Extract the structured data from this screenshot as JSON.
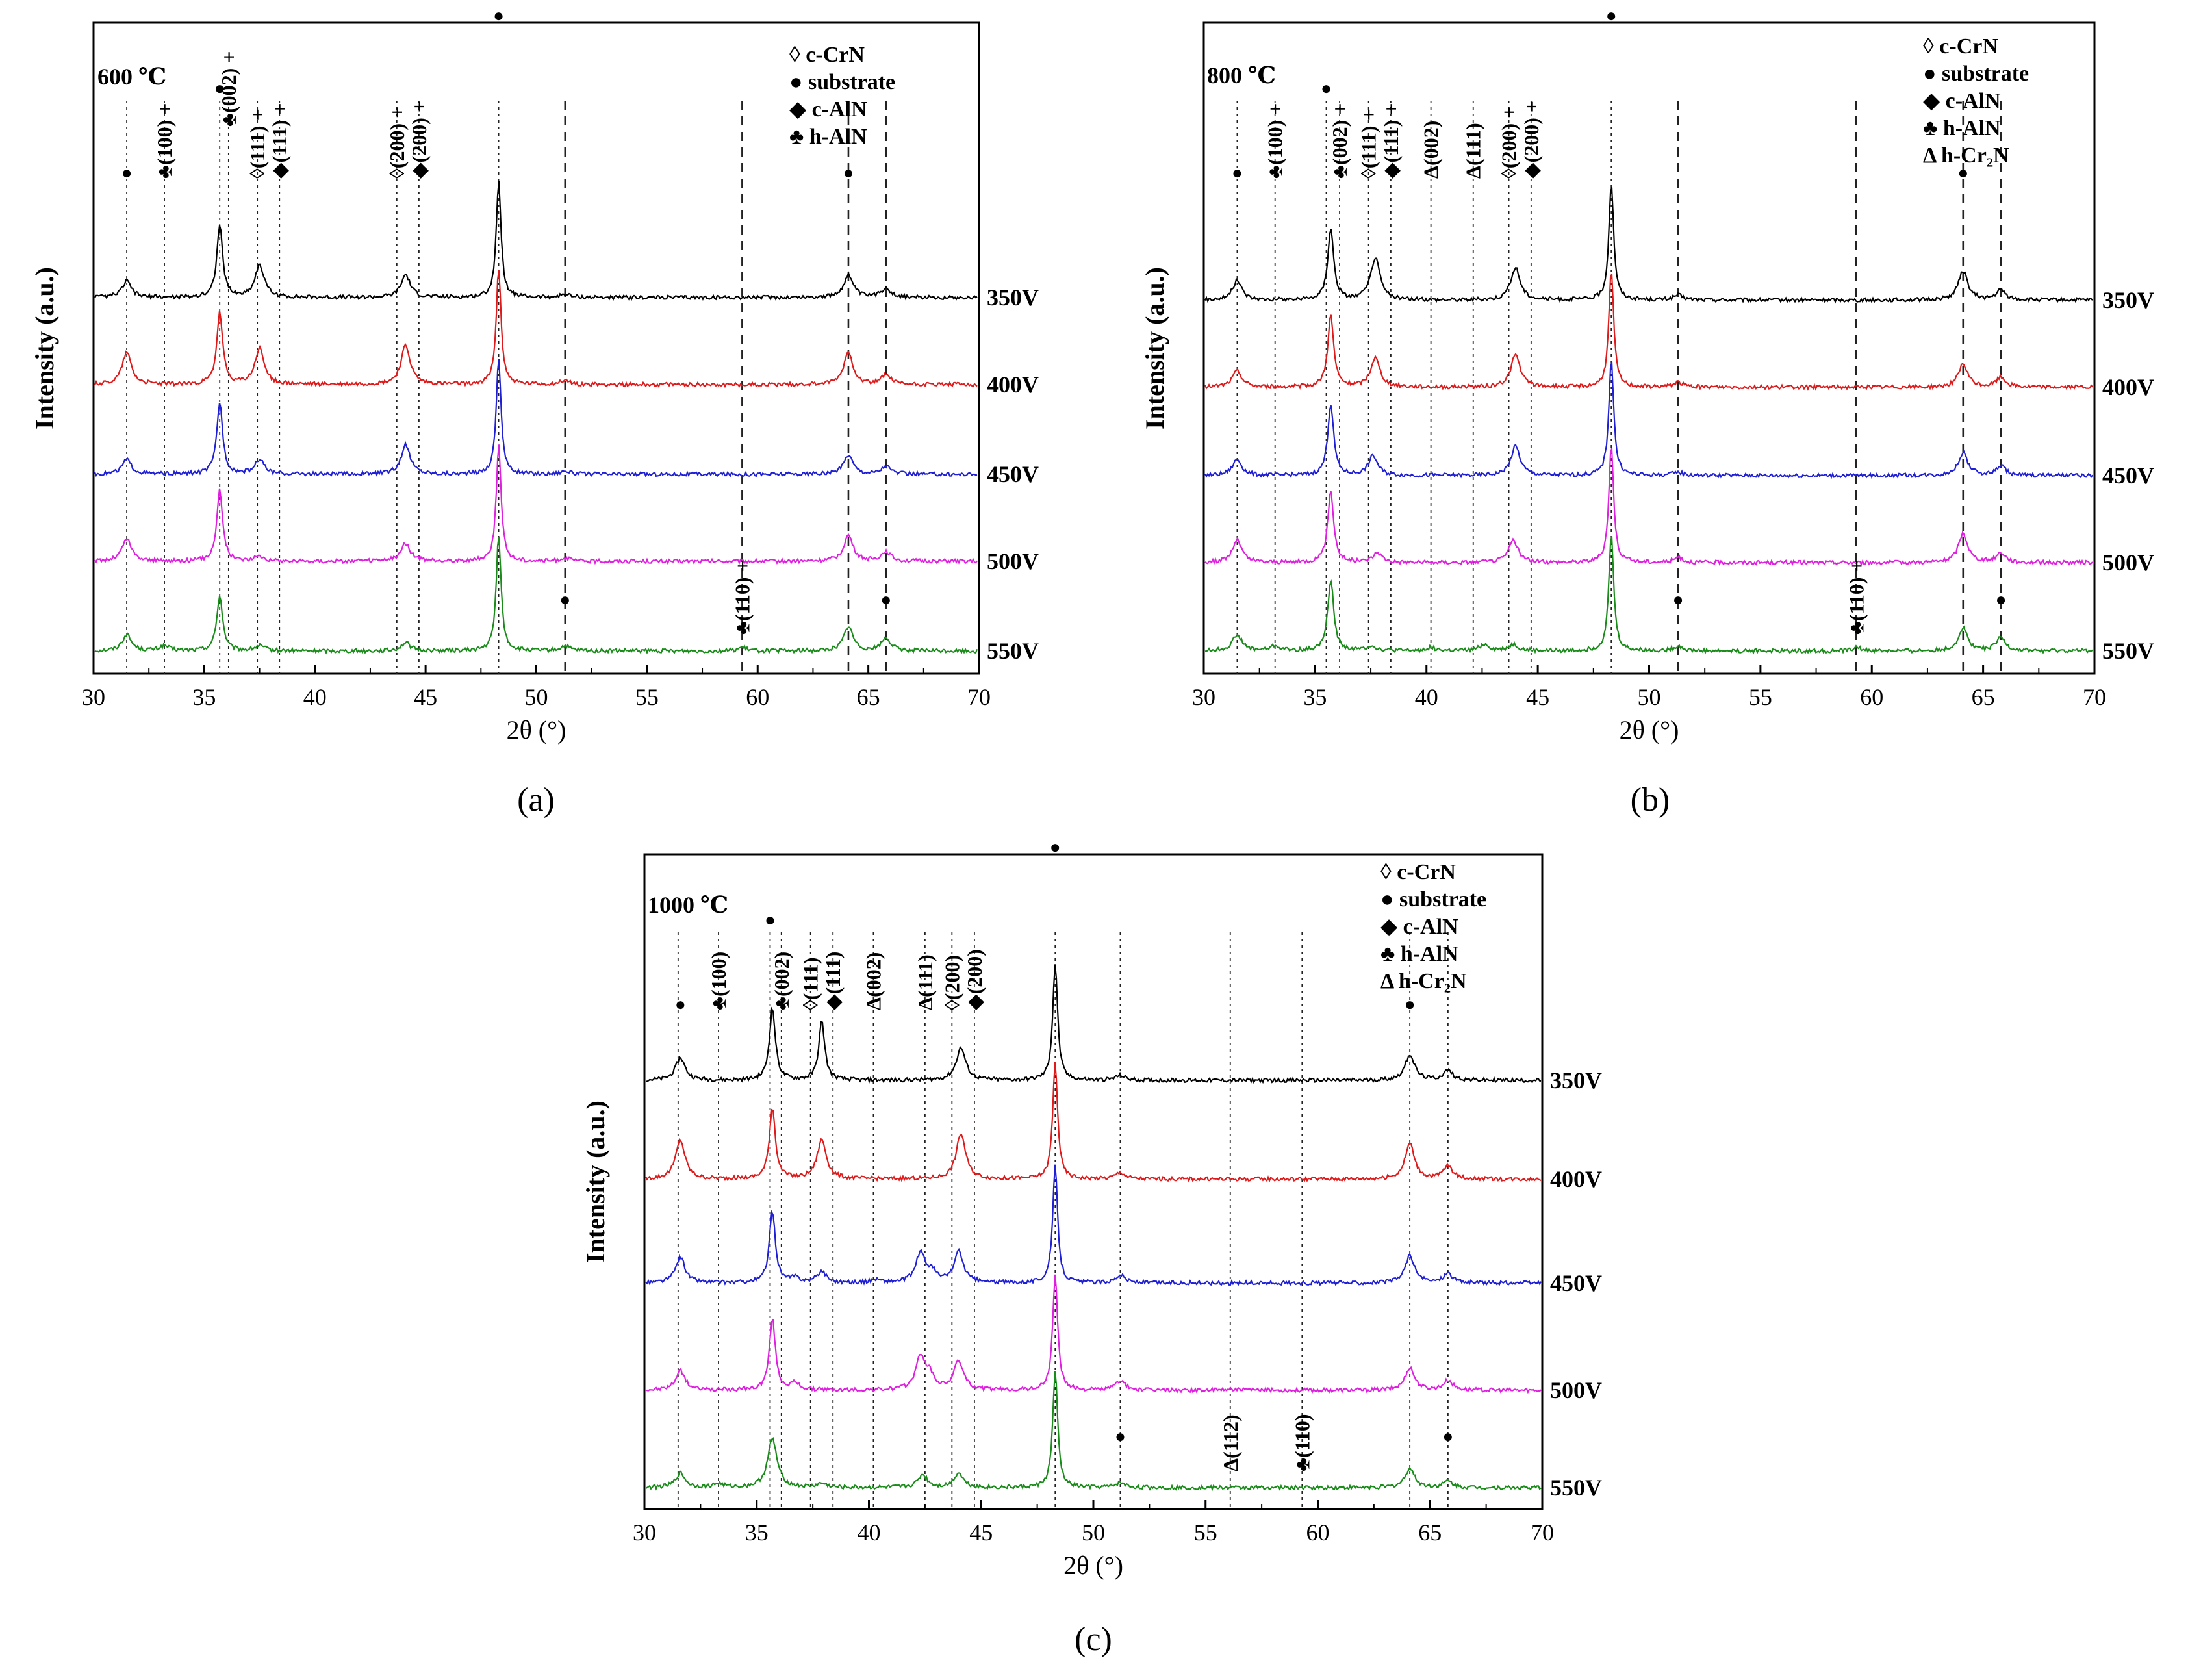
{
  "figure": {
    "description_labels": [
      "(a)",
      "(b)",
      "(c)"
    ]
  },
  "styles": {
    "series_colors": {
      "550V": "#1a8c1a",
      "500V": "#e020e0",
      "450V": "#1f1fd6",
      "400V": "#e01a1a",
      "350V": "#000000"
    }
  },
  "chart_data": [
    {
      "type": "line",
      "panel": "(a)",
      "title": "600 ℃",
      "xlabel": "2θ (°)",
      "ylabel": "Intensity (a.u.)",
      "xlim": [
        30,
        70
      ],
      "xticks": [
        30,
        35,
        40,
        45,
        50,
        55,
        60,
        65,
        70
      ],
      "legend": [
        "◊ c-CrN",
        "● substrate",
        "◆ c-AlN",
        "♣ h-AlN"
      ],
      "series": [
        {
          "name": "550V",
          "color": "#1a8c1a",
          "peaks": [
            [
              31.5,
              0.5
            ],
            [
              33.2,
              0.15
            ],
            [
              35.7,
              1.7
            ],
            [
              37.5,
              0.15
            ],
            [
              44.1,
              0.25
            ],
            [
              48.3,
              3.6
            ],
            [
              51.3,
              0.15
            ],
            [
              59.3,
              0.1
            ],
            [
              64.1,
              0.75
            ],
            [
              65.8,
              0.4
            ]
          ]
        },
        {
          "name": "500V",
          "color": "#e020e0",
          "peaks": [
            [
              31.5,
              0.7
            ],
            [
              35.7,
              2.2
            ],
            [
              37.5,
              0.15
            ],
            [
              44.1,
              0.55
            ],
            [
              48.3,
              3.6
            ],
            [
              51.3,
              0.1
            ],
            [
              64.1,
              0.8
            ],
            [
              65.8,
              0.3
            ]
          ]
        },
        {
          "name": "450V",
          "color": "#1f1fd6",
          "peaks": [
            [
              31.5,
              0.45
            ],
            [
              35.7,
              2.2
            ],
            [
              37.5,
              0.45
            ],
            [
              44.1,
              0.9
            ],
            [
              48.3,
              3.6
            ],
            [
              51.3,
              0.1
            ],
            [
              64.1,
              0.6
            ],
            [
              65.8,
              0.25
            ]
          ]
        },
        {
          "name": "400V",
          "color": "#e01a1a",
          "peaks": [
            [
              31.5,
              1.0
            ],
            [
              35.7,
              2.2
            ],
            [
              37.5,
              1.1
            ],
            [
              44.1,
              1.2
            ],
            [
              48.3,
              3.6
            ],
            [
              51.3,
              0.12
            ],
            [
              64.1,
              1.0
            ],
            [
              65.8,
              0.3
            ]
          ]
        },
        {
          "name": "350V",
          "color": "#000000",
          "peaks": [
            [
              31.5,
              0.5
            ],
            [
              35.7,
              2.2
            ],
            [
              37.5,
              1.0
            ],
            [
              44.1,
              0.7
            ],
            [
              48.3,
              3.6
            ],
            [
              51.3,
              0.1
            ],
            [
              64.1,
              0.7
            ],
            [
              65.8,
              0.3
            ]
          ]
        }
      ],
      "reference_lines": [
        {
          "x": 31.5,
          "style": "dotted"
        },
        {
          "x": 33.2,
          "style": "dotted"
        },
        {
          "x": 35.7,
          "style": "dotted"
        },
        {
          "x": 36.1,
          "style": "dotted"
        },
        {
          "x": 37.4,
          "style": "dotted"
        },
        {
          "x": 38.4,
          "style": "dotted"
        },
        {
          "x": 43.7,
          "style": "dotted"
        },
        {
          "x": 44.7,
          "style": "dotted"
        },
        {
          "x": 48.3,
          "style": "dotted"
        },
        {
          "x": 51.3,
          "style": "dashed"
        },
        {
          "x": 59.3,
          "style": "dashed"
        },
        {
          "x": 64.1,
          "style": "dashed"
        },
        {
          "x": 65.8,
          "style": "dashed"
        }
      ],
      "annotations": [
        {
          "x": 31.5,
          "label": "●",
          "level": 1
        },
        {
          "x": 33.2,
          "label": "♣(100) +",
          "level": 1
        },
        {
          "x": 35.7,
          "label": "●",
          "level": 3
        },
        {
          "x": 36.1,
          "label": "♣(002) +",
          "level": 2
        },
        {
          "x": 37.4,
          "label": "◊(111) +",
          "level": 1
        },
        {
          "x": 38.4,
          "label": "◆(111) +",
          "level": 1
        },
        {
          "x": 43.7,
          "label": "◊(200) +",
          "level": 1
        },
        {
          "x": 44.7,
          "label": "◆(200) +",
          "level": 1
        },
        {
          "x": 48.3,
          "label": "●",
          "level": 4
        },
        {
          "x": 51.3,
          "label": "●",
          "level": 0
        },
        {
          "x": 59.3,
          "label": "♣(110) +",
          "level": 0
        },
        {
          "x": 64.1,
          "label": "●",
          "level": 1
        },
        {
          "x": 65.8,
          "label": "●",
          "level": 0
        }
      ]
    },
    {
      "type": "line",
      "panel": "(b)",
      "title": "800 ℃",
      "xlabel": "2θ (°)",
      "ylabel": "Intensity (a.u.)",
      "xlim": [
        30,
        70
      ],
      "xticks": [
        30,
        35,
        40,
        45,
        50,
        55,
        60,
        65,
        70
      ],
      "legend": [
        "◊ c-CrN",
        "● substrate",
        "◆ c-AlN",
        "♣ h-AlN",
        "Δ h-Cr₂N"
      ],
      "series": [
        {
          "name": "550V",
          "color": "#1a8c1a",
          "peaks": [
            [
              31.5,
              0.5
            ],
            [
              33.2,
              0.15
            ],
            [
              35.7,
              2.2
            ],
            [
              37.5,
              0.15
            ],
            [
              40.2,
              0.1
            ],
            [
              42.6,
              0.2
            ],
            [
              43.9,
              0.2
            ],
            [
              48.3,
              3.6
            ],
            [
              51.3,
              0.15
            ],
            [
              59.3,
              0.1
            ],
            [
              64.1,
              0.7
            ],
            [
              65.8,
              0.4
            ]
          ]
        },
        {
          "name": "500V",
          "color": "#e020e0",
          "peaks": [
            [
              31.5,
              0.7
            ],
            [
              35.7,
              2.2
            ],
            [
              37.8,
              0.3
            ],
            [
              43.9,
              0.7
            ],
            [
              48.3,
              3.6
            ],
            [
              51.3,
              0.15
            ],
            [
              64.1,
              0.9
            ],
            [
              65.8,
              0.3
            ]
          ]
        },
        {
          "name": "450V",
          "color": "#1f1fd6",
          "peaks": [
            [
              31.5,
              0.5
            ],
            [
              35.7,
              2.2
            ],
            [
              37.6,
              0.6
            ],
            [
              44.0,
              0.9
            ],
            [
              48.3,
              3.6
            ],
            [
              51.3,
              0.1
            ],
            [
              64.1,
              0.7
            ],
            [
              65.8,
              0.3
            ]
          ]
        },
        {
          "name": "400V",
          "color": "#e01a1a",
          "peaks": [
            [
              31.5,
              0.5
            ],
            [
              35.7,
              2.2
            ],
            [
              37.7,
              0.9
            ],
            [
              44.0,
              1.0
            ],
            [
              48.3,
              3.6
            ],
            [
              51.3,
              0.15
            ],
            [
              64.1,
              0.7
            ],
            [
              65.8,
              0.3
            ]
          ]
        },
        {
          "name": "350V",
          "color": "#000000",
          "peaks": [
            [
              31.5,
              0.6
            ],
            [
              35.7,
              2.2
            ],
            [
              37.7,
              1.3
            ],
            [
              44.0,
              1.0
            ],
            [
              48.3,
              3.6
            ],
            [
              51.3,
              0.15
            ],
            [
              64.1,
              0.9
            ],
            [
              65.8,
              0.3
            ]
          ]
        }
      ],
      "reference_lines": [
        {
          "x": 31.5,
          "style": "dotted"
        },
        {
          "x": 33.2,
          "style": "dotted"
        },
        {
          "x": 35.5,
          "style": "dotted"
        },
        {
          "x": 36.1,
          "style": "dotted"
        },
        {
          "x": 37.4,
          "style": "dotted"
        },
        {
          "x": 38.4,
          "style": "dotted"
        },
        {
          "x": 40.2,
          "style": "dotted"
        },
        {
          "x": 42.1,
          "style": "dotted"
        },
        {
          "x": 43.7,
          "style": "dotted"
        },
        {
          "x": 44.7,
          "style": "dotted"
        },
        {
          "x": 48.3,
          "style": "dotted"
        },
        {
          "x": 51.3,
          "style": "dashed"
        },
        {
          "x": 59.3,
          "style": "dashed"
        },
        {
          "x": 64.1,
          "style": "dashed"
        },
        {
          "x": 65.8,
          "style": "dashed"
        }
      ],
      "annotations": [
        {
          "x": 31.5,
          "label": "●",
          "level": 1
        },
        {
          "x": 33.2,
          "label": "♣(100) +",
          "level": 1
        },
        {
          "x": 35.5,
          "label": "●",
          "level": 3
        },
        {
          "x": 36.1,
          "label": "♣(002) +",
          "level": 1
        },
        {
          "x": 37.4,
          "label": "◊(111) +",
          "level": 1
        },
        {
          "x": 38.4,
          "label": "◆(111) +",
          "level": 1
        },
        {
          "x": 40.2,
          "label": "Δ(002)",
          "level": 1
        },
        {
          "x": 42.1,
          "label": "Δ(111)",
          "level": 1
        },
        {
          "x": 43.7,
          "label": "◊(200) +",
          "level": 1
        },
        {
          "x": 44.7,
          "label": "◆(200) +",
          "level": 1
        },
        {
          "x": 48.3,
          "label": "●",
          "level": 4
        },
        {
          "x": 51.3,
          "label": "●",
          "level": 0
        },
        {
          "x": 59.3,
          "label": "♣(110) +",
          "level": 0
        },
        {
          "x": 64.1,
          "label": "●",
          "level": 1
        },
        {
          "x": 65.8,
          "label": "●",
          "level": 0
        }
      ]
    },
    {
      "type": "line",
      "panel": "(c)",
      "title": "1000 ℃",
      "xlabel": "2θ  (°)",
      "ylabel": "Intensity (a.u.)",
      "xlim": [
        30,
        70
      ],
      "xticks": [
        30,
        35,
        40,
        45,
        50,
        55,
        60,
        65,
        70
      ],
      "legend": [
        "◊ c-CrN",
        "● substrate",
        "◆ c-AlN",
        "♣ h-AlN",
        "Δ h-Cr₂N"
      ],
      "series": [
        {
          "name": "550V",
          "color": "#1a8c1a",
          "peaks": [
            [
              31.6,
              0.45
            ],
            [
              33.3,
              0.12
            ],
            [
              35.7,
              1.5
            ],
            [
              37.9,
              0.12
            ],
            [
              42.4,
              0.4
            ],
            [
              44.0,
              0.45
            ],
            [
              48.3,
              3.6
            ],
            [
              51.2,
              0.15
            ],
            [
              64.1,
              0.6
            ],
            [
              65.8,
              0.2
            ]
          ]
        },
        {
          "name": "500V",
          "color": "#e020e0",
          "peaks": [
            [
              31.6,
              0.6
            ],
            [
              35.7,
              2.2
            ],
            [
              36.7,
              0.2
            ],
            [
              42.3,
              1.0
            ],
            [
              42.7,
              0.4
            ],
            [
              44.0,
              0.9
            ],
            [
              48.3,
              3.6
            ],
            [
              51.2,
              0.3
            ],
            [
              56.1,
              0.05
            ],
            [
              64.1,
              0.7
            ],
            [
              65.8,
              0.3
            ]
          ]
        },
        {
          "name": "450V",
          "color": "#1f1fd6",
          "peaks": [
            [
              31.6,
              0.8
            ],
            [
              35.7,
              2.2
            ],
            [
              36.7,
              0.15
            ],
            [
              37.9,
              0.35
            ],
            [
              40.3,
              0.1
            ],
            [
              42.3,
              0.9
            ],
            [
              42.8,
              0.3
            ],
            [
              44.0,
              0.95
            ],
            [
              48.3,
              3.6
            ],
            [
              51.2,
              0.25
            ],
            [
              64.1,
              0.85
            ],
            [
              65.8,
              0.3
            ]
          ]
        },
        {
          "name": "400V",
          "color": "#e01a1a",
          "peaks": [
            [
              31.6,
              1.2
            ],
            [
              35.7,
              2.2
            ],
            [
              37.9,
              1.2
            ],
            [
              44.1,
              1.4
            ],
            [
              48.3,
              3.6
            ],
            [
              51.2,
              0.2
            ],
            [
              64.1,
              1.1
            ],
            [
              65.8,
              0.4
            ]
          ]
        },
        {
          "name": "350V",
          "color": "#000000",
          "peaks": [
            [
              31.6,
              0.7
            ],
            [
              35.7,
              2.2
            ],
            [
              37.9,
              1.8
            ],
            [
              44.1,
              1.0
            ],
            [
              48.3,
              3.6
            ],
            [
              51.2,
              0.15
            ],
            [
              64.1,
              0.8
            ],
            [
              65.8,
              0.3
            ]
          ]
        }
      ],
      "reference_lines": [
        {
          "x": 31.5,
          "style": "dotted"
        },
        {
          "x": 33.3,
          "style": "dotted"
        },
        {
          "x": 35.6,
          "style": "dotted"
        },
        {
          "x": 36.1,
          "style": "dotted"
        },
        {
          "x": 37.4,
          "style": "dotted"
        },
        {
          "x": 38.4,
          "style": "dotted"
        },
        {
          "x": 40.2,
          "style": "dotted"
        },
        {
          "x": 42.5,
          "style": "dotted"
        },
        {
          "x": 43.7,
          "style": "dotted"
        },
        {
          "x": 44.7,
          "style": "dotted"
        },
        {
          "x": 48.3,
          "style": "dotted"
        },
        {
          "x": 51.2,
          "style": "dotted"
        },
        {
          "x": 56.1,
          "style": "dotted"
        },
        {
          "x": 59.3,
          "style": "dotted"
        },
        {
          "x": 64.1,
          "style": "dotted"
        },
        {
          "x": 65.8,
          "style": "dotted"
        }
      ],
      "annotations": [
        {
          "x": 31.6,
          "label": "●",
          "level": 1
        },
        {
          "x": 33.3,
          "label": "♣(100)",
          "level": 1
        },
        {
          "x": 35.6,
          "label": "●",
          "level": 3
        },
        {
          "x": 36.1,
          "label": "♣(002)",
          "level": 1
        },
        {
          "x": 37.4,
          "label": "◊(111)",
          "level": 1
        },
        {
          "x": 38.4,
          "label": "◆(111)",
          "level": 1
        },
        {
          "x": 40.2,
          "label": "Δ(002)",
          "level": 1
        },
        {
          "x": 42.5,
          "label": "Δ(111)",
          "level": 1
        },
        {
          "x": 43.7,
          "label": "◊(200)",
          "level": 1
        },
        {
          "x": 44.7,
          "label": "◆(200)",
          "level": 1
        },
        {
          "x": 48.3,
          "label": "●",
          "level": 4
        },
        {
          "x": 51.2,
          "label": "●",
          "level": 0
        },
        {
          "x": 56.1,
          "label": "Δ(112)",
          "level": 0
        },
        {
          "x": 59.3,
          "label": "♣(110)",
          "level": 0
        },
        {
          "x": 64.1,
          "label": "●",
          "level": 1
        },
        {
          "x": 65.8,
          "label": "●",
          "level": 0
        }
      ]
    }
  ]
}
